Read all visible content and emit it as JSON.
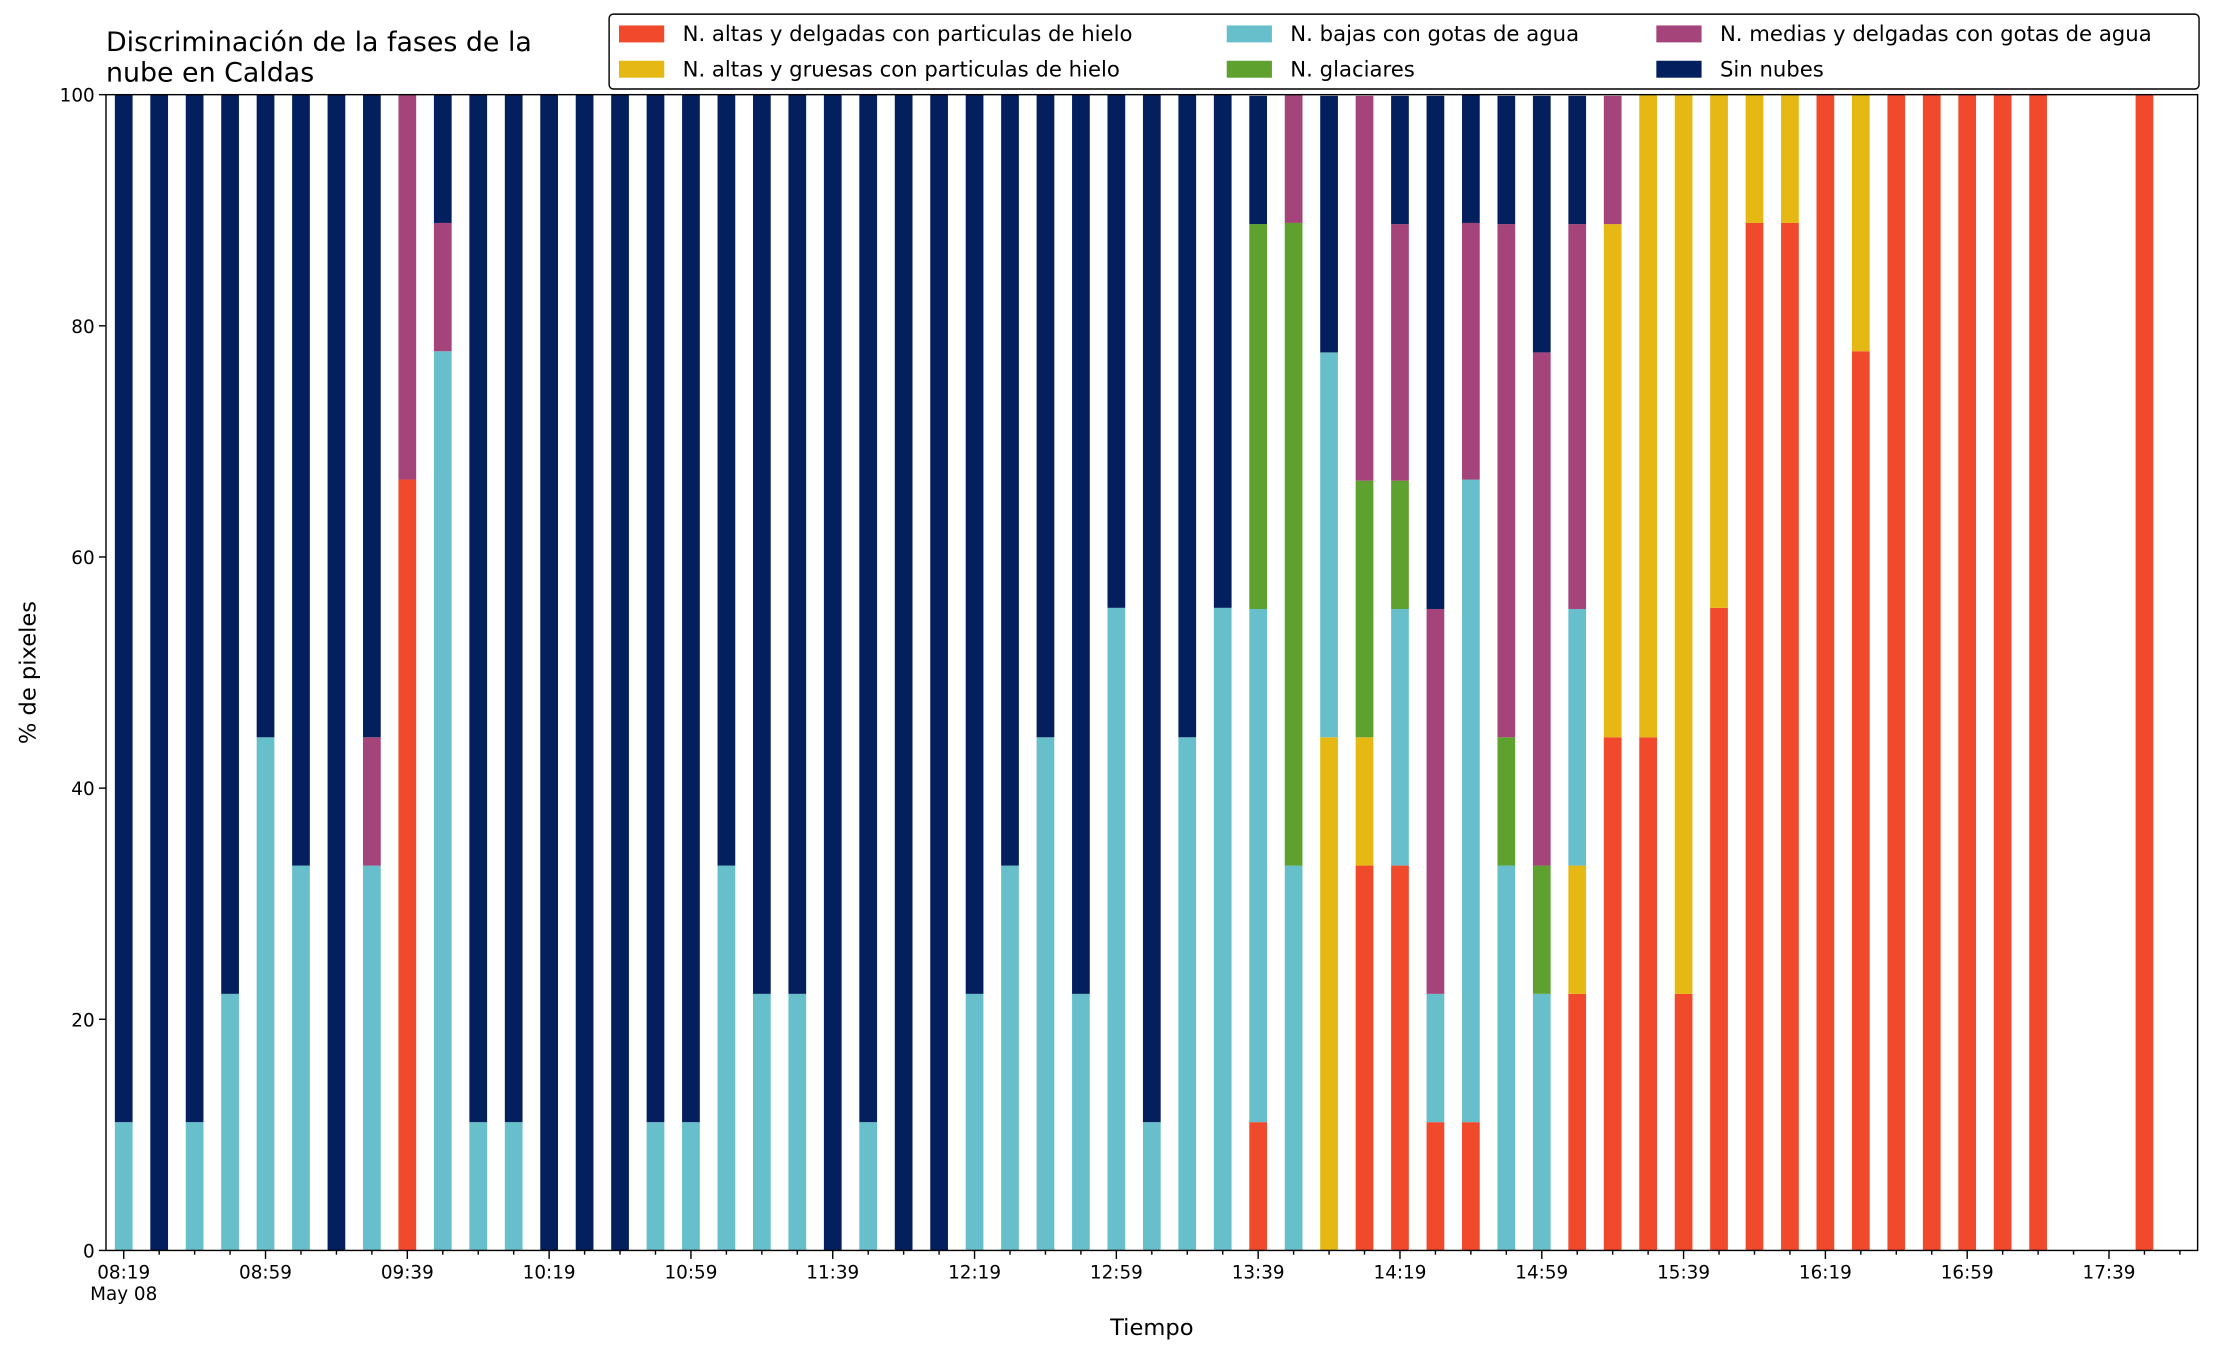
{
  "chart_data": {
    "type": "stacked_bar",
    "title": "Discriminación de la fases de la\nnube en Caldas",
    "x_label": "Tiempo",
    "y_label": "% de pixeles",
    "categories": [
      "08:19\nMay 08",
      null,
      null,
      null,
      "08:59",
      null,
      null,
      null,
      "09:39",
      null,
      null,
      null,
      "10:19",
      null,
      null,
      null,
      "10:59",
      null,
      null,
      null,
      "11:39",
      null,
      null,
      null,
      "12:19",
      null,
      null,
      null,
      "12:59",
      null,
      null,
      null,
      "13:39",
      null,
      null,
      null,
      "14:19",
      null,
      null,
      null,
      "14:59",
      null,
      null,
      null,
      "15:39",
      null,
      null,
      null,
      "16:19",
      null,
      null,
      null,
      "16:59",
      null,
      null,
      null,
      "17:39",
      null,
      null
    ],
    "series": [
      {
        "name": "N. altas y delgadas con particulas de hielo",
        "color": "#f0492b",
        "values": [
          0,
          0,
          0,
          0,
          0,
          0,
          0,
          0,
          66.7,
          0,
          0,
          0,
          0,
          0,
          0,
          0,
          0,
          0,
          0,
          0,
          0,
          0,
          0,
          0,
          0,
          0,
          0,
          0,
          0,
          0,
          0,
          0,
          11.1,
          0,
          0,
          33.3,
          33.3,
          11.1,
          11.1,
          0,
          0,
          22.2,
          44.4,
          44.4,
          22.2,
          55.6,
          88.9,
          88.9,
          100,
          77.8,
          100,
          100,
          100,
          100,
          100,
          0,
          0,
          100,
          0
        ]
      },
      {
        "name": "N. altas y gruesas con particulas de hielo",
        "color": "#e6b813",
        "values": [
          0,
          0,
          0,
          0,
          0,
          0,
          0,
          0,
          0,
          0,
          0,
          0,
          0,
          0,
          0,
          0,
          0,
          0,
          0,
          0,
          0,
          0,
          0,
          0,
          0,
          0,
          0,
          0,
          0,
          0,
          0,
          0,
          0,
          0,
          44.4,
          11.1,
          0,
          0,
          0,
          0,
          0,
          11.1,
          44.4,
          55.6,
          77.8,
          44.4,
          11.1,
          11.1,
          0,
          22.2,
          0,
          0,
          0,
          0,
          0,
          0,
          0,
          0,
          0
        ]
      },
      {
        "name": "N. bajas con gotas de agua",
        "color": "#67bfcb",
        "values": [
          11.1,
          0,
          11.1,
          22.2,
          44.4,
          33.3,
          0,
          33.3,
          0,
          77.8,
          11.1,
          11.1,
          0,
          0,
          0,
          11.1,
          11.1,
          33.3,
          22.2,
          22.2,
          0,
          11.1,
          0,
          0,
          22.2,
          33.3,
          44.4,
          22.2,
          55.6,
          11.1,
          44.4,
          55.6,
          44.4,
          33.3,
          33.3,
          0,
          22.2,
          11.1,
          55.6,
          33.3,
          22.2,
          22.2,
          0,
          0,
          0,
          0,
          0,
          0,
          0,
          0,
          0,
          0,
          0,
          0,
          0,
          0,
          0,
          0,
          0
        ]
      },
      {
        "name": "N. glaciares",
        "color": "#5ea12f",
        "values": [
          0,
          0,
          0,
          0,
          0,
          0,
          0,
          0,
          0,
          0,
          0,
          0,
          0,
          0,
          0,
          0,
          0,
          0,
          0,
          0,
          0,
          0,
          0,
          0,
          0,
          0,
          0,
          0,
          0,
          0,
          0,
          0,
          33.3,
          55.6,
          0,
          22.2,
          11.1,
          0,
          0,
          11.1,
          11.1,
          0,
          0,
          0,
          0,
          0,
          0,
          0,
          0,
          0,
          0,
          0,
          0,
          0,
          0,
          0,
          0,
          0,
          0
        ]
      },
      {
        "name": "N. medias y delgadas con gotas de agua",
        "color": "#a5447a",
        "values": [
          0,
          0,
          0,
          0,
          0,
          0,
          0,
          11.1,
          33.3,
          11.1,
          0,
          0,
          0,
          0,
          0,
          0,
          0,
          0,
          0,
          0,
          0,
          0,
          0,
          0,
          0,
          0,
          0,
          0,
          0,
          0,
          0,
          0,
          0,
          11.1,
          0,
          33.3,
          22.2,
          33.3,
          22.2,
          44.4,
          44.4,
          33.3,
          11.1,
          0,
          0,
          0,
          0,
          0,
          0,
          0,
          0,
          0,
          0,
          0,
          0,
          0,
          0,
          0,
          0
        ]
      },
      {
        "name": "Sin nubes",
        "color": "#041f5e",
        "values": [
          88.9,
          100,
          88.9,
          77.8,
          55.6,
          66.7,
          100,
          55.6,
          0,
          11.1,
          88.9,
          88.9,
          100,
          100,
          100,
          88.9,
          88.9,
          66.7,
          77.8,
          77.8,
          100,
          88.9,
          100,
          100,
          77.8,
          66.7,
          55.6,
          77.8,
          44.4,
          88.9,
          55.6,
          44.4,
          11.1,
          0,
          22.2,
          0,
          11.1,
          44.4,
          11.1,
          11.1,
          22.2,
          11.1,
          0,
          0,
          0,
          0,
          0,
          0,
          0,
          0,
          0,
          0,
          0,
          0,
          0,
          0,
          0,
          0,
          0
        ]
      }
    ],
    "ylim": [
      0,
      100
    ],
    "yticks": [
      0,
      20,
      40,
      60,
      80,
      100
    ],
    "grid": false,
    "legend": "top"
  }
}
